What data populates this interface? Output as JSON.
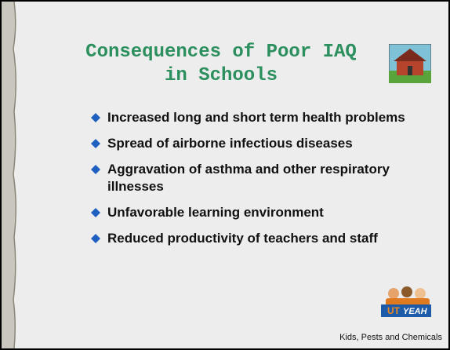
{
  "slide": {
    "title_lines": [
      "Consequences of Poor IAQ",
      "in Schools"
    ],
    "bullets": [
      "Increased long and short term health problems",
      "Spread of airborne infectious diseases",
      "Aggravation of asthma and other respiratory illnesses",
      "Unfavorable learning environment",
      "Reduced productivity of teachers and staff"
    ],
    "logo_text": "YEAH",
    "footer": "Kids, Pests and Chemicals"
  }
}
